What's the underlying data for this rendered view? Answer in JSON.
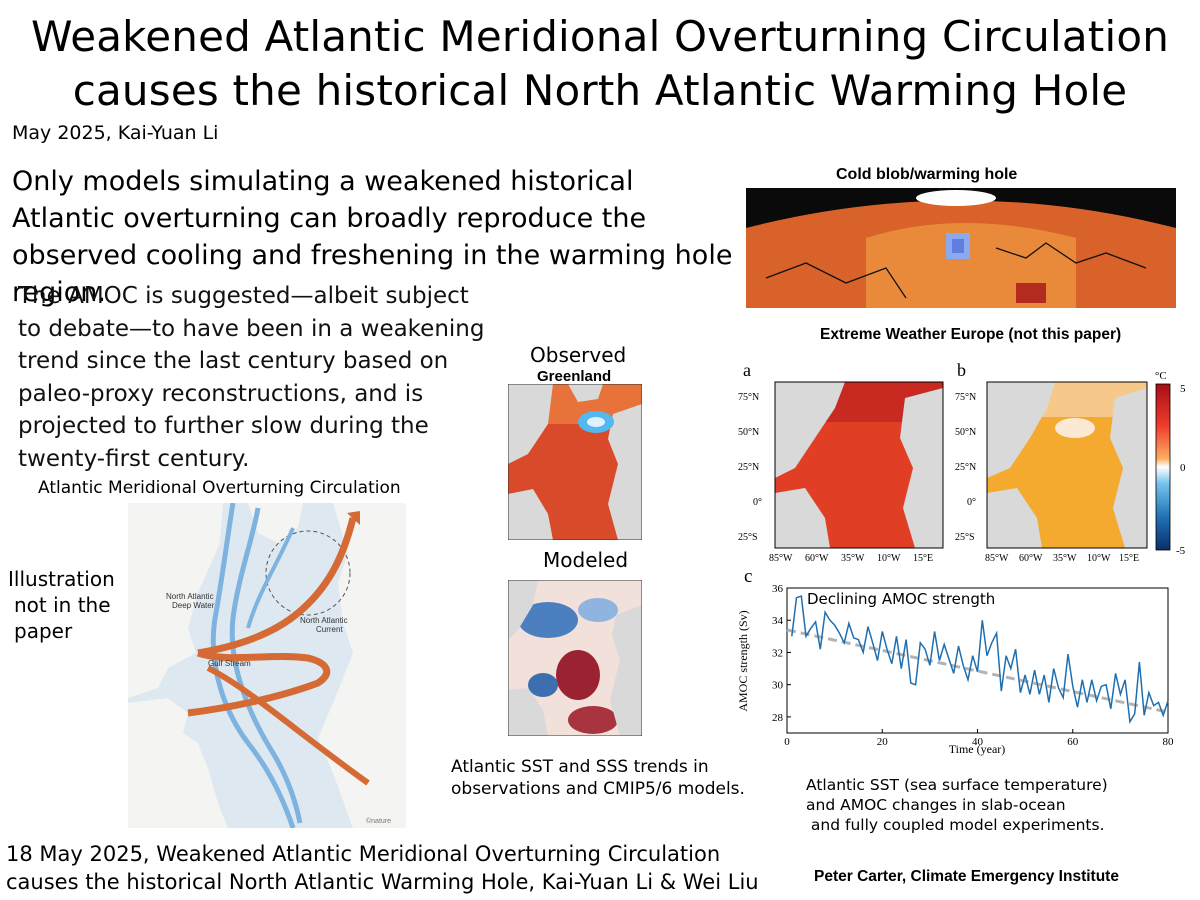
{
  "title": {
    "line1": "Weakened Atlantic Meridional Overturning Circulation",
    "line2": "causes the historical North Atlantic Warming Hole"
  },
  "byline": "May 2025, Kai-Yuan Li",
  "lead": "Only models simulating a weakened historical Atlantic overturning can broadly reproduce the observed cooling and freshening in the warming hole region.",
  "amoc_paragraph": "The AMOC is suggested—albeit subject to debate—to have been in a weakening trend since the last century based on paleo-proxy reconstructions, and is projected to further slow during the twenty-first century.",
  "amoc_caption": "Atlantic Meridional Overturning Circulation",
  "illustration": {
    "note_line1": "Illustration",
    "note_line2": "not in the",
    "note_line3": "paper",
    "label_nadw_1": "North Atlantic",
    "label_nadw_2": "Deep Water",
    "label_nac_1": "North Atlantic",
    "label_nac_2": "Current",
    "label_gulf": "Gulf Stream",
    "watermark": "©nature"
  },
  "sst_maps": {
    "observed_label": "Observed",
    "greenland_label": "Greenland",
    "modeled_label": "Modeled",
    "caption_line1": "Atlantic SST and SSS trends in",
    "caption_line2": "observations and CMIP5/6 models."
  },
  "cold_blob": {
    "title": "Cold blob/warming hole"
  },
  "europe_panels": {
    "title": "Extreme Weather Europe (not this paper)",
    "panel_a": "a",
    "panel_b": "b",
    "panel_c": "c",
    "lat_ticks": [
      "75°N",
      "50°N",
      "25°N",
      "0°",
      "25°S"
    ],
    "lon_ticks": [
      "85°W",
      "60°W",
      "35°W",
      "10°W",
      "15°E"
    ],
    "colorbar_unit": "°C",
    "colorbar_max": "5",
    "colorbar_zero": "0",
    "colorbar_min": "-5",
    "colors": {
      "warm_dark": "#b2182b",
      "warm": "#e34a2b",
      "orange": "#f4a92f",
      "white": "#ffffff",
      "cool": "#4aa3e0",
      "cool_dark": "#08306b",
      "land": "#d9d9d9"
    }
  },
  "chart_data": {
    "type": "line",
    "title": "Declining AMOC strength",
    "xlabel": "Time (year)",
    "ylabel": "AMOC strength (Sv)",
    "xlim": [
      0,
      80
    ],
    "ylim": [
      27,
      36
    ],
    "xticks": [
      0,
      20,
      40,
      60,
      80
    ],
    "yticks": [
      28,
      30,
      32,
      34,
      36
    ],
    "series": [
      {
        "color": "#1f6fb0",
        "x": [
          1,
          2,
          3,
          4,
          5,
          6,
          7,
          8,
          9,
          10,
          11,
          12,
          13,
          14,
          15,
          16,
          17,
          18,
          19,
          20,
          21,
          22,
          23,
          24,
          25,
          26,
          27,
          28,
          29,
          30,
          31,
          32,
          33,
          34,
          35,
          36,
          37,
          38,
          39,
          40,
          41,
          42,
          43,
          44,
          45,
          46,
          47,
          48,
          49,
          50,
          51,
          52,
          53,
          54,
          55,
          56,
          57,
          58,
          59,
          60,
          61,
          62,
          63,
          64,
          65,
          66,
          67,
          68,
          69,
          70,
          71,
          72,
          73,
          74,
          75,
          76,
          77,
          78,
          79,
          80
        ],
        "y": [
          33.0,
          35.4,
          35.5,
          33.0,
          33.5,
          33.9,
          32.2,
          34.5,
          34.0,
          33.7,
          33.2,
          32.6,
          33.8,
          32.9,
          32.8,
          32.0,
          33.6,
          32.6,
          31.5,
          33.3,
          32.2,
          31.3,
          33.0,
          31.0,
          32.8,
          30.1,
          30.0,
          32.6,
          32.2,
          31.2,
          33.3,
          31.5,
          32.5,
          31.6,
          30.7,
          32.4,
          31.2,
          30.3,
          31.8,
          30.8,
          34.0,
          31.8,
          32.6,
          33.2,
          29.6,
          31.8,
          31.0,
          32.2,
          29.5,
          30.6,
          29.4,
          30.9,
          29.4,
          30.6,
          28.9,
          31.0,
          29.8,
          29.2,
          31.9,
          29.9,
          28.6,
          30.3,
          28.9,
          30.3,
          29.0,
          29.9,
          30.0,
          28.5,
          30.7,
          29.4,
          30.3,
          27.7,
          28.2,
          31.4,
          28.1,
          29.5,
          28.7,
          28.9,
          28.1,
          29.0
        ]
      },
      {
        "color": "#b3b3b3",
        "x": [
          0,
          80
        ],
        "y": [
          33.4,
          28.3
        ]
      }
    ]
  },
  "coupled_caption": {
    "line1": "Atlantic SST  (sea surface temperature)",
    "line2": "and AMOC changes in slab-ocean",
    "line3": " and fully coupled model experiments."
  },
  "bottom_citation": {
    "line1": "18 May 2025, Weakened Atlantic Meridional Overturning Circulation",
    "line2": "causes the historical North Atlantic Warming Hole, Kai-Yuan Li & Wei Liu"
  },
  "credit": "Peter Carter,  Climate Emergency Institute"
}
